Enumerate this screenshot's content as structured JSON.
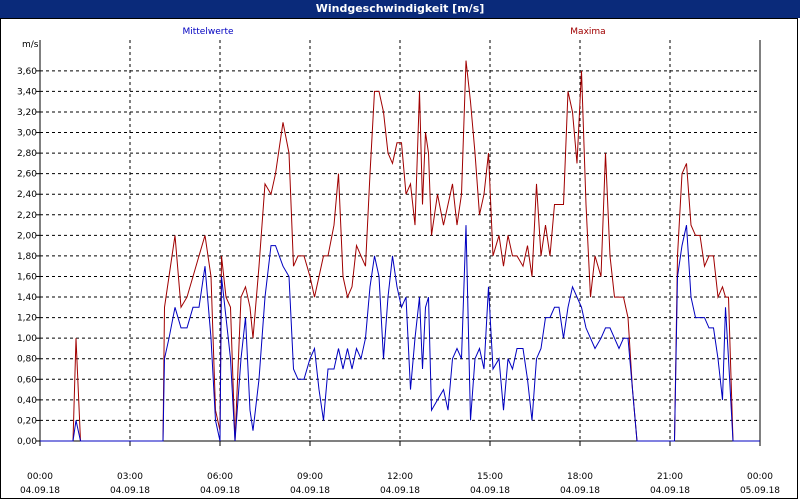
{
  "window": {
    "title": "Windgeschwindigkeit [m/s]"
  },
  "chart_data": {
    "type": "line",
    "title": "Windgeschwindigkeit [m/s]",
    "ylabel": "m/s",
    "xlabel": "",
    "ylim": [
      0,
      3.9
    ],
    "xlim": [
      0,
      24
    ],
    "grid": true,
    "legend_placement": "top",
    "y_ticks": [
      "0,00",
      "0,20",
      "0,40",
      "0,60",
      "0,80",
      "1,00",
      "1,20",
      "1,40",
      "1,60",
      "1,80",
      "2,00",
      "2,20",
      "2,40",
      "2,60",
      "2,80",
      "3,00",
      "3,20",
      "3,40",
      "3,60"
    ],
    "x_ticks": [
      {
        "time": "00:00",
        "date": "04.09.18"
      },
      {
        "time": "03:00",
        "date": "04.09.18"
      },
      {
        "time": "06:00",
        "date": "04.09.18"
      },
      {
        "time": "09:00",
        "date": "04.09.18"
      },
      {
        "time": "12:00",
        "date": "04.09.18"
      },
      {
        "time": "15:00",
        "date": "04.09.18"
      },
      {
        "time": "18:00",
        "date": "04.09.18"
      },
      {
        "time": "21:00",
        "date": "04.09.18"
      },
      {
        "time": "00:00",
        "date": "05.09.18"
      }
    ],
    "series": [
      {
        "name": "Mittelwerte",
        "color": "#0000c0",
        "points": [
          [
            0,
            0
          ],
          [
            1.1,
            0
          ],
          [
            1.2,
            0.2
          ],
          [
            1.35,
            0
          ],
          [
            1.5,
            0
          ],
          [
            2,
            0
          ],
          [
            3,
            0
          ],
          [
            4,
            0
          ],
          [
            4.1,
            0
          ],
          [
            4.15,
            0.8
          ],
          [
            4.3,
            1
          ],
          [
            4.5,
            1.3
          ],
          [
            4.7,
            1.1
          ],
          [
            4.9,
            1.1
          ],
          [
            5.1,
            1.3
          ],
          [
            5.3,
            1.3
          ],
          [
            5.5,
            1.7
          ],
          [
            5.7,
            1
          ],
          [
            5.85,
            0.2
          ],
          [
            6,
            0
          ],
          [
            6.05,
            1.6
          ],
          [
            6.2,
            1.2
          ],
          [
            6.35,
            0.8
          ],
          [
            6.5,
            0
          ],
          [
            6.7,
            0.8
          ],
          [
            6.85,
            1.2
          ],
          [
            7,
            0.3
          ],
          [
            7.1,
            0.1
          ],
          [
            7.3,
            0.6
          ],
          [
            7.5,
            1.4
          ],
          [
            7.7,
            1.9
          ],
          [
            7.85,
            1.9
          ],
          [
            8.1,
            1.7
          ],
          [
            8.3,
            1.6
          ],
          [
            8.45,
            0.7
          ],
          [
            8.6,
            0.6
          ],
          [
            8.8,
            0.6
          ],
          [
            9,
            0.8
          ],
          [
            9.15,
            0.9
          ],
          [
            9.3,
            0.5
          ],
          [
            9.45,
            0.2
          ],
          [
            9.6,
            0.7
          ],
          [
            9.8,
            0.7
          ],
          [
            9.95,
            0.9
          ],
          [
            10.1,
            0.7
          ],
          [
            10.25,
            0.9
          ],
          [
            10.4,
            0.7
          ],
          [
            10.55,
            0.9
          ],
          [
            10.7,
            0.8
          ],
          [
            10.85,
            1
          ],
          [
            11,
            1.5
          ],
          [
            11.15,
            1.8
          ],
          [
            11.3,
            1.6
          ],
          [
            11.45,
            0.8
          ],
          [
            11.6,
            1.4
          ],
          [
            11.75,
            1.8
          ],
          [
            11.9,
            1.5
          ],
          [
            12.05,
            1.3
          ],
          [
            12.2,
            1.4
          ],
          [
            12.35,
            0.5
          ],
          [
            12.5,
            1
          ],
          [
            12.65,
            1.4
          ],
          [
            12.75,
            0.7
          ],
          [
            12.85,
            1.3
          ],
          [
            12.95,
            1.4
          ],
          [
            13.05,
            0.3
          ],
          [
            13.25,
            0.4
          ],
          [
            13.45,
            0.5
          ],
          [
            13.6,
            0.3
          ],
          [
            13.75,
            0.8
          ],
          [
            13.9,
            0.9
          ],
          [
            14.05,
            0.8
          ],
          [
            14.2,
            2.1
          ],
          [
            14.35,
            0.2
          ],
          [
            14.5,
            0.8
          ],
          [
            14.65,
            0.9
          ],
          [
            14.8,
            0.7
          ],
          [
            14.95,
            1.5
          ],
          [
            15.1,
            0.7
          ],
          [
            15.3,
            0.8
          ],
          [
            15.45,
            0.3
          ],
          [
            15.6,
            0.8
          ],
          [
            15.75,
            0.7
          ],
          [
            15.9,
            0.9
          ],
          [
            16.1,
            0.9
          ],
          [
            16.25,
            0.6
          ],
          [
            16.4,
            0.2
          ],
          [
            16.55,
            0.8
          ],
          [
            16.7,
            0.9
          ],
          [
            16.85,
            1.2
          ],
          [
            17,
            1.2
          ],
          [
            17.15,
            1.3
          ],
          [
            17.3,
            1.3
          ],
          [
            17.45,
            1
          ],
          [
            17.6,
            1.3
          ],
          [
            17.75,
            1.5
          ],
          [
            17.9,
            1.4
          ],
          [
            18.05,
            1.3
          ],
          [
            18.2,
            1.1
          ],
          [
            18.35,
            1
          ],
          [
            18.5,
            0.9
          ],
          [
            18.7,
            1
          ],
          [
            18.85,
            1.1
          ],
          [
            19,
            1.1
          ],
          [
            19.15,
            1
          ],
          [
            19.3,
            0.9
          ],
          [
            19.45,
            1
          ],
          [
            19.6,
            1
          ],
          [
            19.75,
            0.5
          ],
          [
            19.9,
            0
          ],
          [
            20,
            0
          ],
          [
            21,
            0
          ],
          [
            21.15,
            0
          ],
          [
            21.25,
            1.6
          ],
          [
            21.4,
            1.9
          ],
          [
            21.55,
            2.1
          ],
          [
            21.7,
            1.4
          ],
          [
            21.85,
            1.2
          ],
          [
            22,
            1.2
          ],
          [
            22.15,
            1.2
          ],
          [
            22.3,
            1.1
          ],
          [
            22.45,
            1.1
          ],
          [
            22.6,
            0.8
          ],
          [
            22.75,
            0.4
          ],
          [
            22.85,
            1.3
          ],
          [
            22.95,
            0.8
          ],
          [
            23.1,
            0
          ],
          [
            23.2,
            0
          ],
          [
            24,
            0
          ]
        ]
      },
      {
        "name": "Maxima",
        "color": "#a00000",
        "points": [
          [
            0,
            0
          ],
          [
            1.1,
            0
          ],
          [
            1.2,
            1
          ],
          [
            1.35,
            0
          ],
          [
            1.5,
            0
          ],
          [
            2,
            0
          ],
          [
            3,
            0
          ],
          [
            4,
            0
          ],
          [
            4.1,
            0
          ],
          [
            4.15,
            1.3
          ],
          [
            4.3,
            1.6
          ],
          [
            4.5,
            2
          ],
          [
            4.7,
            1.3
          ],
          [
            4.9,
            1.4
          ],
          [
            5.1,
            1.6
          ],
          [
            5.3,
            1.8
          ],
          [
            5.5,
            2
          ],
          [
            5.7,
            1.6
          ],
          [
            5.85,
            0.3
          ],
          [
            6,
            0.1
          ],
          [
            6.05,
            1.8
          ],
          [
            6.2,
            1.4
          ],
          [
            6.35,
            1.3
          ],
          [
            6.5,
            0
          ],
          [
            6.7,
            1.4
          ],
          [
            6.85,
            1.5
          ],
          [
            7,
            1.3
          ],
          [
            7.1,
            1
          ],
          [
            7.3,
            1.7
          ],
          [
            7.5,
            2.5
          ],
          [
            7.7,
            2.4
          ],
          [
            7.85,
            2.6
          ],
          [
            8.1,
            3.1
          ],
          [
            8.3,
            2.8
          ],
          [
            8.45,
            1.7
          ],
          [
            8.6,
            1.8
          ],
          [
            8.8,
            1.8
          ],
          [
            9,
            1.6
          ],
          [
            9.15,
            1.4
          ],
          [
            9.3,
            1.6
          ],
          [
            9.45,
            1.8
          ],
          [
            9.6,
            1.8
          ],
          [
            9.8,
            2.1
          ],
          [
            9.95,
            2.6
          ],
          [
            10.1,
            1.6
          ],
          [
            10.25,
            1.4
          ],
          [
            10.4,
            1.5
          ],
          [
            10.55,
            1.9
          ],
          [
            10.7,
            1.8
          ],
          [
            10.85,
            1.7
          ],
          [
            11,
            2.6
          ],
          [
            11.15,
            3.4
          ],
          [
            11.3,
            3.4
          ],
          [
            11.45,
            3.2
          ],
          [
            11.6,
            2.8
          ],
          [
            11.75,
            2.7
          ],
          [
            11.9,
            2.9
          ],
          [
            12.05,
            2.9
          ],
          [
            12.2,
            2.4
          ],
          [
            12.35,
            2.5
          ],
          [
            12.5,
            2.1
          ],
          [
            12.65,
            3.4
          ],
          [
            12.75,
            2.3
          ],
          [
            12.85,
            3
          ],
          [
            12.95,
            2.8
          ],
          [
            13.05,
            2
          ],
          [
            13.25,
            2.4
          ],
          [
            13.45,
            2.1
          ],
          [
            13.6,
            2.3
          ],
          [
            13.75,
            2.5
          ],
          [
            13.9,
            2.1
          ],
          [
            14.05,
            2.4
          ],
          [
            14.2,
            3.7
          ],
          [
            14.35,
            3.3
          ],
          [
            14.5,
            2.8
          ],
          [
            14.65,
            2.2
          ],
          [
            14.8,
            2.4
          ],
          [
            14.95,
            2.8
          ],
          [
            15.1,
            1.8
          ],
          [
            15.3,
            2
          ],
          [
            15.45,
            1.7
          ],
          [
            15.6,
            2
          ],
          [
            15.75,
            1.8
          ],
          [
            15.9,
            1.8
          ],
          [
            16.1,
            1.7
          ],
          [
            16.25,
            1.9
          ],
          [
            16.4,
            1.6
          ],
          [
            16.55,
            2.5
          ],
          [
            16.7,
            1.8
          ],
          [
            16.85,
            2.1
          ],
          [
            17,
            1.8
          ],
          [
            17.15,
            2.3
          ],
          [
            17.3,
            2.3
          ],
          [
            17.45,
            2.3
          ],
          [
            17.6,
            3.4
          ],
          [
            17.75,
            3.2
          ],
          [
            17.9,
            2.7
          ],
          [
            18.05,
            3.6
          ],
          [
            18.2,
            2.3
          ],
          [
            18.35,
            1.4
          ],
          [
            18.5,
            1.8
          ],
          [
            18.7,
            1.6
          ],
          [
            18.85,
            2.8
          ],
          [
            19,
            1.8
          ],
          [
            19.15,
            1.4
          ],
          [
            19.3,
            1.4
          ],
          [
            19.45,
            1.4
          ],
          [
            19.6,
            1.2
          ],
          [
            19.75,
            0.5
          ],
          [
            19.9,
            0
          ],
          [
            20,
            0
          ],
          [
            21,
            0
          ],
          [
            21.15,
            0
          ],
          [
            21.25,
            1.8
          ],
          [
            21.4,
            2.6
          ],
          [
            21.55,
            2.7
          ],
          [
            21.7,
            2.1
          ],
          [
            21.85,
            2
          ],
          [
            22,
            2
          ],
          [
            22.15,
            1.7
          ],
          [
            22.3,
            1.8
          ],
          [
            22.45,
            1.8
          ],
          [
            22.6,
            1.4
          ],
          [
            22.75,
            1.5
          ],
          [
            22.85,
            1.4
          ],
          [
            22.95,
            1.4
          ],
          [
            23.1,
            0
          ],
          [
            23.2,
            0
          ],
          [
            24,
            0
          ]
        ]
      }
    ]
  }
}
